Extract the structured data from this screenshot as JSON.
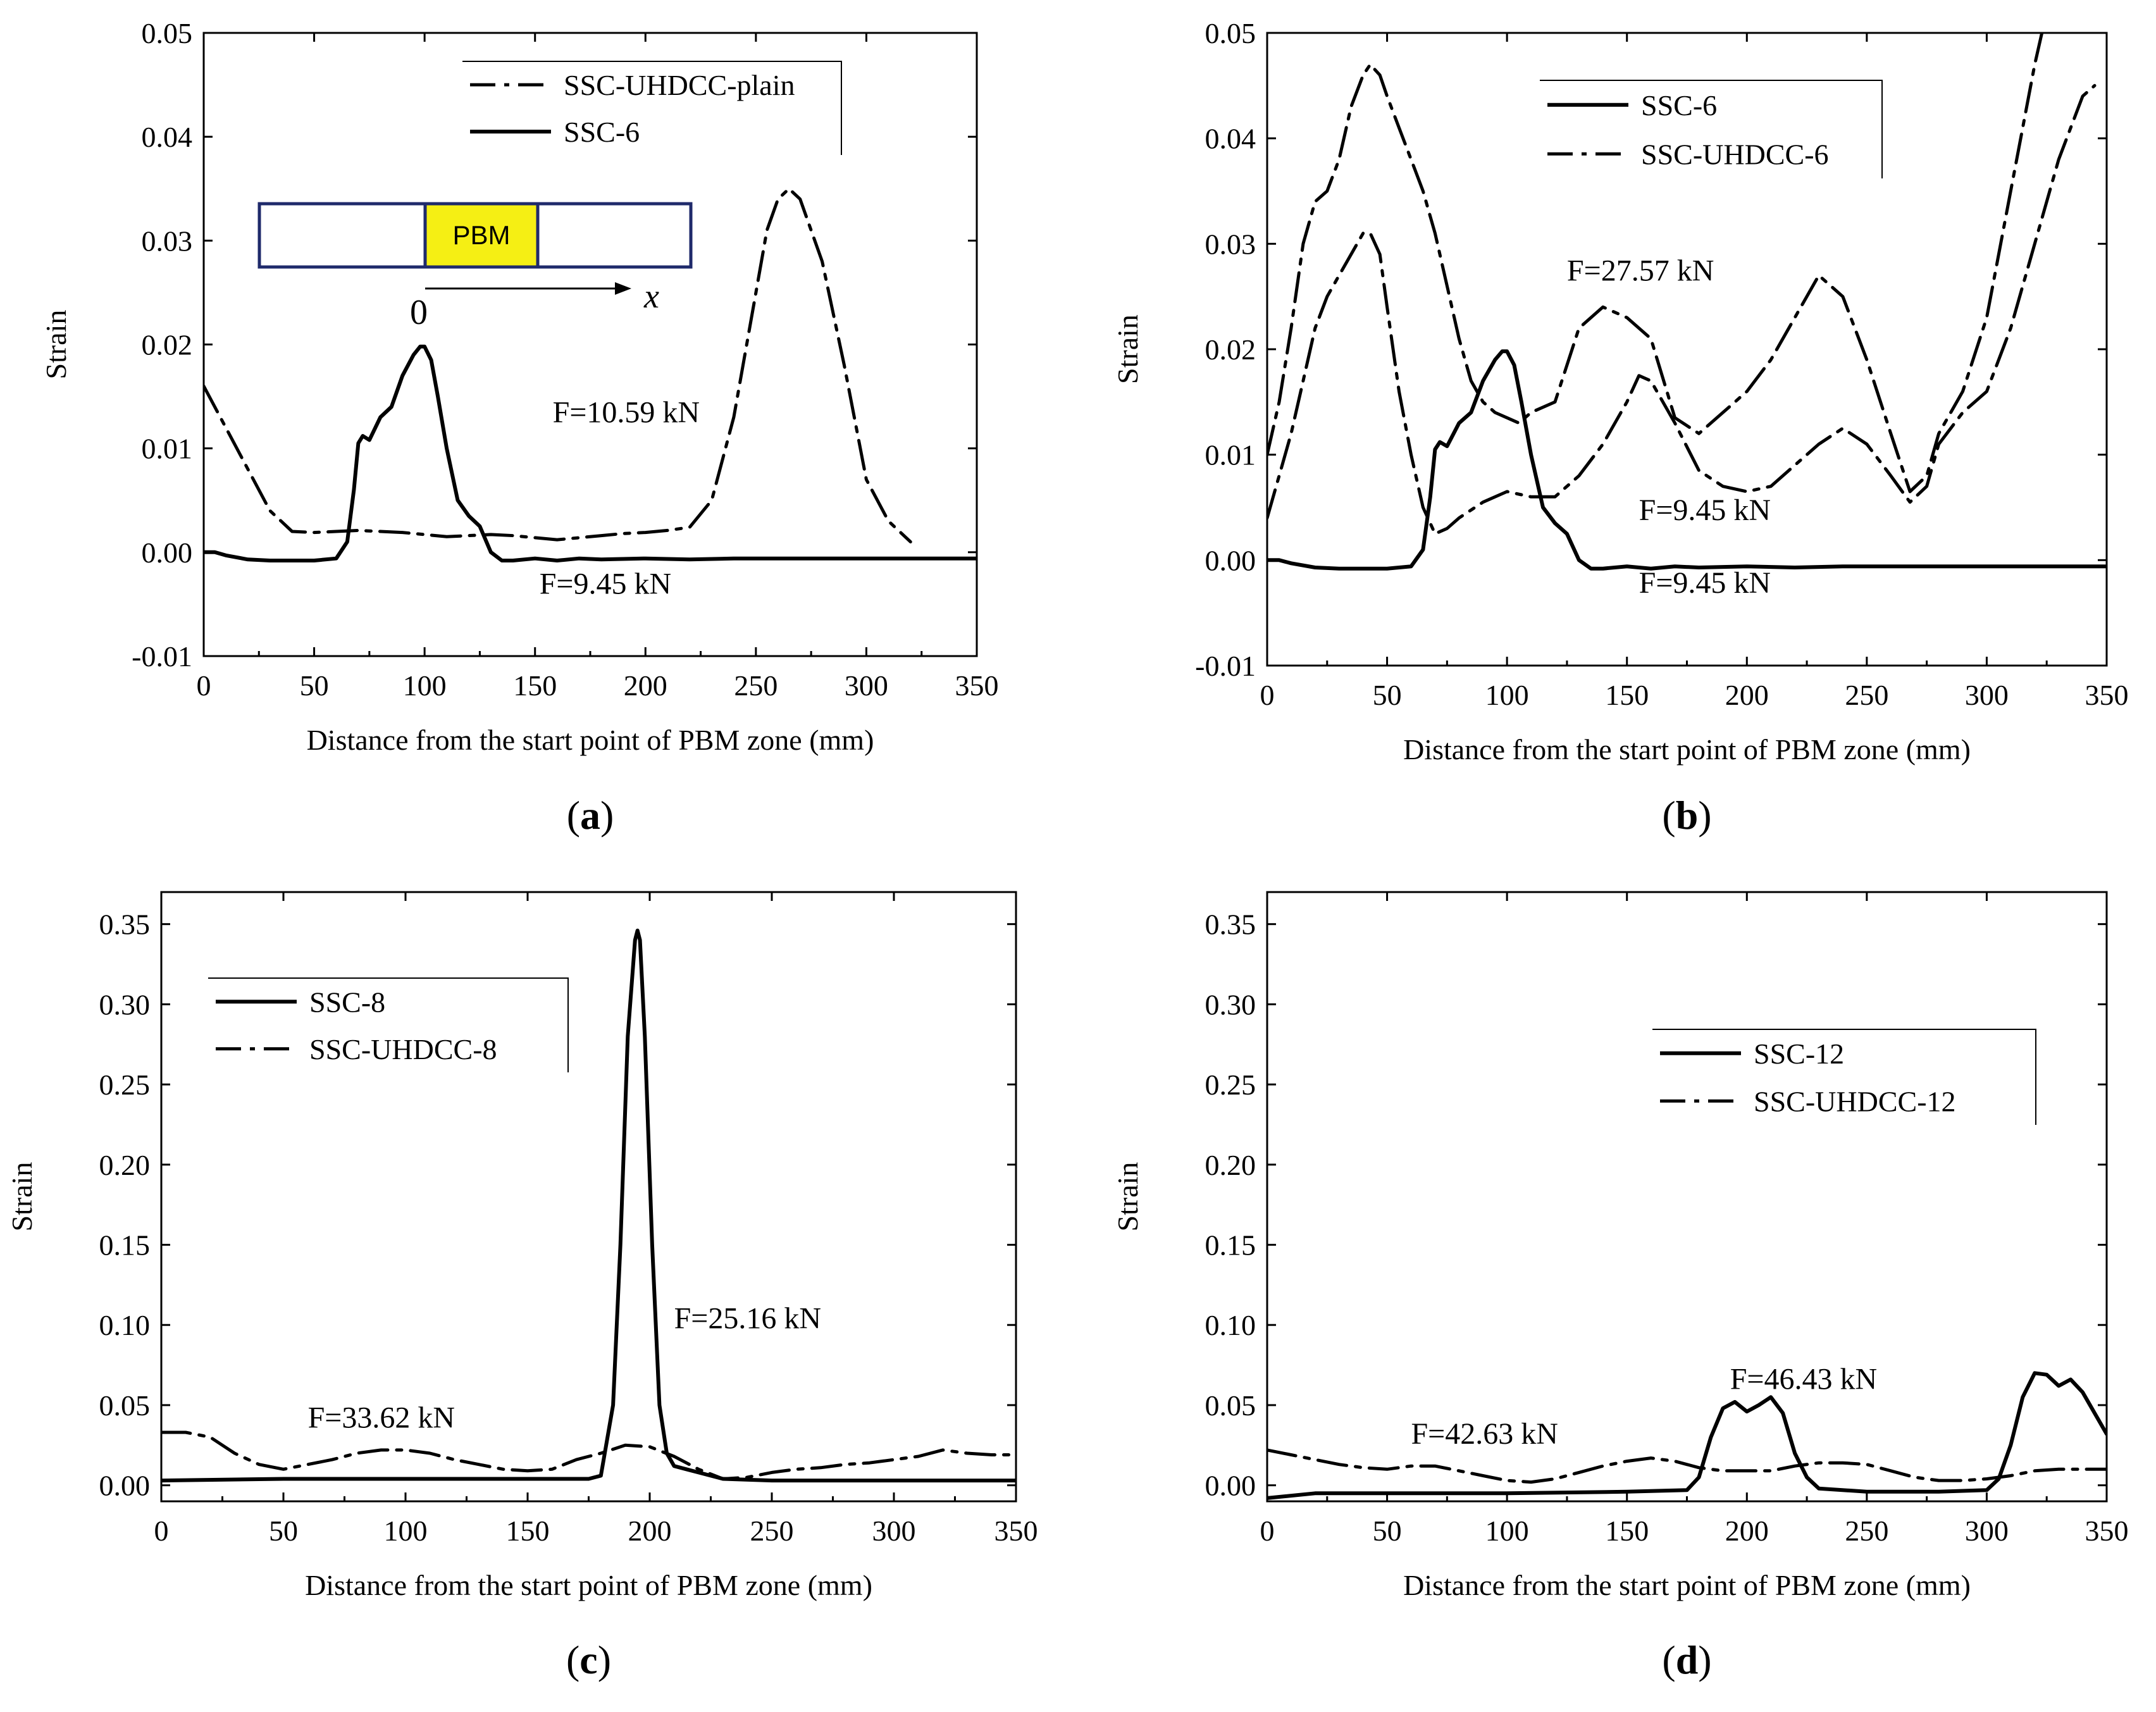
{
  "chart_data": [
    {
      "id": "a",
      "type": "line",
      "panel_label": "a",
      "xlabel": "Distance from the start point of PBM zone (mm)",
      "ylabel": "Strain",
      "xlim": [
        0,
        350
      ],
      "ylim": [
        -0.01,
        0.05
      ],
      "xticks": [
        0,
        50,
        100,
        150,
        200,
        250,
        300,
        350
      ],
      "yticks": [
        -0.01,
        0.0,
        0.01,
        0.02,
        0.03,
        0.04,
        0.05
      ],
      "ytick_labels": [
        "-0.01",
        "0.00",
        "0.01",
        "0.02",
        "0.03",
        "0.04",
        "0.05"
      ],
      "legend_position": "top-right",
      "inset": {
        "label": "PBM",
        "origin_label": "0",
        "axis_label": "x"
      },
      "series": [
        {
          "name": "SSC-UHDCC-plain",
          "style": "dashdot",
          "x": [
            0,
            10,
            20,
            30,
            40,
            50,
            60,
            70,
            80,
            90,
            100,
            110,
            120,
            130,
            140,
            150,
            160,
            170,
            180,
            190,
            200,
            210,
            220,
            230,
            240,
            250,
            255,
            260,
            265,
            270,
            280,
            290,
            300,
            310,
            320
          ],
          "y": [
            0.016,
            0.012,
            0.008,
            0.004,
            0.002,
            0.0019,
            0.002,
            0.0021,
            0.002,
            0.0019,
            0.0017,
            0.0015,
            0.0016,
            0.0017,
            0.0016,
            0.0014,
            0.0012,
            0.0014,
            0.0016,
            0.0018,
            0.0019,
            0.0021,
            0.0024,
            0.005,
            0.013,
            0.025,
            0.031,
            0.034,
            0.035,
            0.034,
            0.028,
            0.018,
            0.007,
            0.003,
            0.001
          ]
        },
        {
          "name": "SSC-6",
          "style": "solid",
          "x": [
            0,
            5,
            10,
            20,
            30,
            40,
            50,
            60,
            65,
            68,
            70,
            72,
            75,
            80,
            85,
            90,
            95,
            98,
            100,
            103,
            106,
            110,
            115,
            120,
            125,
            130,
            135,
            140,
            150,
            160,
            170,
            180,
            200,
            220,
            240,
            260,
            280,
            300,
            320,
            350
          ],
          "y": [
            0.0,
            0.0,
            -0.0003,
            -0.0007,
            -0.0008,
            -0.0008,
            -0.0008,
            -0.0006,
            0.001,
            0.006,
            0.0105,
            0.0112,
            0.0108,
            0.013,
            0.014,
            0.017,
            0.019,
            0.0198,
            0.0198,
            0.0185,
            0.015,
            0.01,
            0.005,
            0.0035,
            0.0025,
            0.0,
            -0.0008,
            -0.0008,
            -0.0006,
            -0.0008,
            -0.0006,
            -0.0007,
            -0.0006,
            -0.0007,
            -0.0006,
            -0.0006,
            -0.0006,
            -0.0006,
            -0.0006,
            -0.0006
          ]
        }
      ],
      "annotations": [
        {
          "text": "F=10.59 kN",
          "x": 158,
          "y": 0.0125
        },
        {
          "text": "F=9.45 kN",
          "x": 152,
          "y": -0.004
        }
      ]
    },
    {
      "id": "b",
      "type": "line",
      "panel_label": "b",
      "xlabel": "Distance from the start point of PBM zone (mm)",
      "ylabel": "Strain",
      "xlim": [
        0,
        350
      ],
      "ylim": [
        -0.01,
        0.05
      ],
      "xticks": [
        0,
        50,
        100,
        150,
        200,
        250,
        300,
        350
      ],
      "yticks": [
        -0.01,
        0.0,
        0.01,
        0.02,
        0.03,
        0.04,
        0.05
      ],
      "ytick_labels": [
        "-0.01",
        "0.00",
        "0.01",
        "0.02",
        "0.03",
        "0.04",
        "0.05"
      ],
      "legend_position": "top-center",
      "series": [
        {
          "name": "SSC-6",
          "style": "solid",
          "x": [
            0,
            5,
            10,
            20,
            30,
            40,
            50,
            60,
            65,
            68,
            70,
            72,
            75,
            80,
            85,
            90,
            95,
            98,
            100,
            103,
            106,
            110,
            115,
            120,
            125,
            130,
            135,
            140,
            150,
            160,
            170,
            180,
            200,
            220,
            240,
            260,
            280,
            300,
            320,
            350
          ],
          "y": [
            0.0,
            0.0,
            -0.0003,
            -0.0007,
            -0.0008,
            -0.0008,
            -0.0008,
            -0.0006,
            0.001,
            0.006,
            0.0105,
            0.0112,
            0.0108,
            0.013,
            0.014,
            0.017,
            0.019,
            0.0198,
            0.0198,
            0.0185,
            0.015,
            0.01,
            0.005,
            0.0035,
            0.0025,
            0.0,
            -0.0008,
            -0.0008,
            -0.0006,
            -0.0008,
            -0.0006,
            -0.0007,
            -0.0006,
            -0.0007,
            -0.0006,
            -0.0006,
            -0.0006,
            -0.0006,
            -0.0006,
            -0.0006
          ]
        },
        {
          "name": "SSC-UHDCC-6 (F=27.57 kN)",
          "style": "dashdot",
          "x": [
            0,
            5,
            10,
            15,
            20,
            25,
            30,
            35,
            40,
            43,
            47,
            50,
            55,
            60,
            65,
            70,
            75,
            80,
            85,
            90,
            95,
            100,
            105,
            110,
            120,
            130,
            140,
            150,
            160,
            170,
            180,
            190,
            200,
            210,
            220,
            230,
            240,
            250,
            260,
            268,
            275,
            280,
            290,
            300,
            310,
            320,
            325
          ],
          "y": [
            0.01,
            0.015,
            0.022,
            0.03,
            0.034,
            0.035,
            0.038,
            0.043,
            0.046,
            0.047,
            0.046,
            0.044,
            0.041,
            0.038,
            0.035,
            0.031,
            0.026,
            0.021,
            0.017,
            0.015,
            0.014,
            0.0135,
            0.013,
            0.014,
            0.015,
            0.022,
            0.024,
            0.023,
            0.021,
            0.0135,
            0.012,
            0.014,
            0.016,
            0.019,
            0.023,
            0.027,
            0.025,
            0.019,
            0.012,
            0.0065,
            0.008,
            0.012,
            0.016,
            0.023,
            0.035,
            0.047,
            0.052
          ]
        },
        {
          "name": "SSC-UHDCC-6 (F=9.45 kN)",
          "style": "dashdot",
          "x": [
            0,
            5,
            10,
            15,
            20,
            25,
            30,
            35,
            40,
            43,
            47,
            50,
            55,
            60,
            65,
            70,
            75,
            80,
            90,
            100,
            110,
            120,
            130,
            140,
            150,
            155,
            160,
            170,
            180,
            190,
            200,
            210,
            220,
            230,
            240,
            250,
            260,
            268,
            275,
            280,
            290,
            300,
            310,
            320,
            330,
            340,
            345
          ],
          "y": [
            0.004,
            0.008,
            0.012,
            0.017,
            0.022,
            0.025,
            0.027,
            0.029,
            0.031,
            0.031,
            0.029,
            0.024,
            0.016,
            0.01,
            0.005,
            0.0025,
            0.003,
            0.004,
            0.0055,
            0.0065,
            0.006,
            0.006,
            0.008,
            0.011,
            0.015,
            0.0175,
            0.017,
            0.013,
            0.0085,
            0.007,
            0.0065,
            0.007,
            0.009,
            0.011,
            0.0125,
            0.011,
            0.008,
            0.0055,
            0.007,
            0.011,
            0.014,
            0.016,
            0.022,
            0.03,
            0.038,
            0.044,
            0.045
          ]
        }
      ],
      "annotations": [
        {
          "text": "F=27.57 kN",
          "x": 125,
          "y": 0.0265
        },
        {
          "text": "F=9.45 kN",
          "x": 155,
          "y": 0.0038
        },
        {
          "text": "F=9.45 kN",
          "x": 155,
          "y": -0.0031
        }
      ]
    },
    {
      "id": "c",
      "type": "line",
      "panel_label": "c",
      "xlabel": "Distance from the start point of PBM zone (mm)",
      "ylabel": "Strain",
      "xlim": [
        0,
        350
      ],
      "ylim": [
        -0.01,
        0.37
      ],
      "xticks": [
        0,
        50,
        100,
        150,
        200,
        250,
        300,
        350
      ],
      "yticks": [
        0.0,
        0.05,
        0.1,
        0.15,
        0.2,
        0.25,
        0.3,
        0.35
      ],
      "ytick_labels": [
        "0.00",
        "0.05",
        "0.10",
        "0.15",
        "0.20",
        "0.25",
        "0.30",
        "0.35"
      ],
      "legend_position": "top-left",
      "series": [
        {
          "name": "SSC-8",
          "style": "solid",
          "x": [
            0,
            50,
            100,
            150,
            175,
            180,
            185,
            188,
            191,
            194,
            195,
            196,
            198,
            201,
            204,
            207,
            210,
            215,
            220,
            230,
            250,
            300,
            350
          ],
          "y": [
            0.003,
            0.004,
            0.004,
            0.004,
            0.004,
            0.006,
            0.05,
            0.15,
            0.28,
            0.34,
            0.346,
            0.34,
            0.28,
            0.15,
            0.05,
            0.02,
            0.012,
            0.01,
            0.008,
            0.004,
            0.003,
            0.003,
            0.003
          ]
        },
        {
          "name": "SSC-UHDCC-8",
          "style": "dashdot",
          "x": [
            0,
            10,
            20,
            30,
            40,
            50,
            60,
            70,
            80,
            90,
            100,
            110,
            120,
            130,
            140,
            150,
            160,
            170,
            180,
            190,
            200,
            210,
            220,
            230,
            240,
            250,
            260,
            270,
            280,
            290,
            300,
            310,
            320,
            330,
            340,
            350
          ],
          "y": [
            0.033,
            0.033,
            0.03,
            0.02,
            0.013,
            0.01,
            0.013,
            0.016,
            0.02,
            0.022,
            0.022,
            0.02,
            0.016,
            0.013,
            0.01,
            0.009,
            0.01,
            0.016,
            0.02,
            0.025,
            0.024,
            0.018,
            0.01,
            0.004,
            0.005,
            0.008,
            0.01,
            0.011,
            0.013,
            0.014,
            0.016,
            0.018,
            0.022,
            0.02,
            0.019,
            0.019
          ]
        }
      ],
      "annotations": [
        {
          "text": "F=25.16 kN",
          "x": 210,
          "y": 0.098
        },
        {
          "text": "F=33.62 kN",
          "x": 60,
          "y": 0.036
        }
      ]
    },
    {
      "id": "d",
      "type": "line",
      "panel_label": "d",
      "xlabel": "Distance from the start point of PBM zone (mm)",
      "ylabel": "Strain",
      "xlim": [
        0,
        350
      ],
      "ylim": [
        -0.01,
        0.37
      ],
      "xticks": [
        0,
        50,
        100,
        150,
        200,
        250,
        300,
        350
      ],
      "yticks": [
        0.0,
        0.05,
        0.1,
        0.15,
        0.2,
        0.25,
        0.3,
        0.35
      ],
      "ytick_labels": [
        "0.00",
        "0.05",
        "0.10",
        "0.15",
        "0.20",
        "0.25",
        "0.30",
        "0.35"
      ],
      "legend_position": "top-right",
      "series": [
        {
          "name": "SSC-12",
          "style": "solid",
          "x": [
            0,
            20,
            50,
            100,
            150,
            175,
            180,
            185,
            190,
            195,
            200,
            205,
            210,
            215,
            220,
            225,
            230,
            250,
            280,
            300,
            305,
            310,
            315,
            320,
            325,
            330,
            335,
            340,
            345,
            350
          ],
          "y": [
            -0.008,
            -0.005,
            -0.005,
            -0.005,
            -0.004,
            -0.003,
            0.005,
            0.03,
            0.048,
            0.052,
            0.046,
            0.05,
            0.055,
            0.045,
            0.02,
            0.005,
            -0.002,
            -0.004,
            -0.004,
            -0.003,
            0.004,
            0.025,
            0.055,
            0.07,
            0.069,
            0.062,
            0.066,
            0.058,
            0.045,
            0.032
          ]
        },
        {
          "name": "SSC-UHDCC-12",
          "style": "dashdot",
          "x": [
            0,
            10,
            20,
            30,
            40,
            50,
            60,
            70,
            80,
            90,
            100,
            110,
            120,
            130,
            140,
            150,
            160,
            170,
            180,
            190,
            200,
            210,
            220,
            230,
            240,
            250,
            260,
            270,
            280,
            290,
            300,
            310,
            320,
            330,
            340,
            350
          ],
          "y": [
            0.022,
            0.019,
            0.016,
            0.013,
            0.011,
            0.01,
            0.012,
            0.012,
            0.009,
            0.006,
            0.003,
            0.002,
            0.004,
            0.008,
            0.012,
            0.015,
            0.017,
            0.015,
            0.011,
            0.009,
            0.009,
            0.009,
            0.012,
            0.014,
            0.014,
            0.013,
            0.009,
            0.005,
            0.003,
            0.003,
            0.004,
            0.006,
            0.009,
            0.01,
            0.01,
            0.01
          ]
        }
      ],
      "annotations": [
        {
          "text": "F=42.63 kN",
          "x": 60,
          "y": 0.026
        },
        {
          "text": "F=46.43 kN",
          "x": 193,
          "y": 0.06
        }
      ]
    }
  ]
}
